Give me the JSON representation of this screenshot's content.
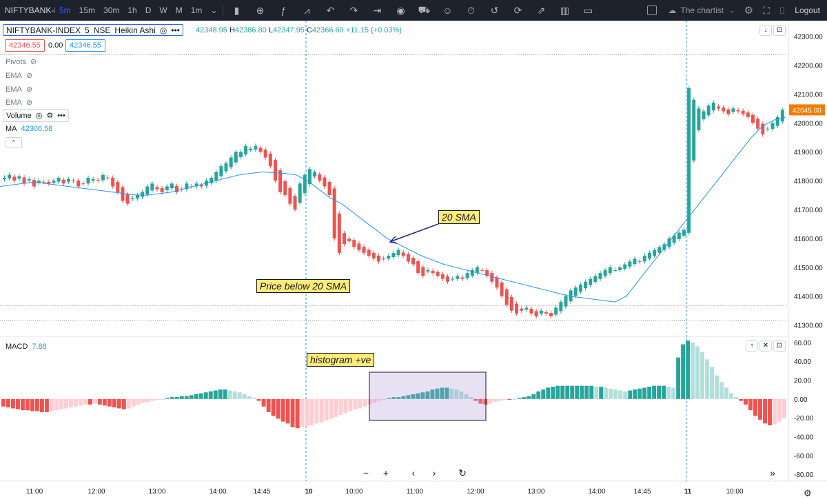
{
  "toolbar": {
    "symbol_short": "NIFTYBANK-I",
    "timeframes": [
      "5m",
      "15m",
      "30m",
      "1h",
      "D",
      "W",
      "M",
      "1m"
    ],
    "active_timeframe": "5m",
    "chartist": "The chartist",
    "logout": "Logout"
  },
  "legend": {
    "title_symbol": "NIFTYBANK-INDEX",
    "title_interval": "5",
    "title_exchange": "NSE",
    "title_style": "Heikin Ashi",
    "o_label": "",
    "o": "42348.95",
    "h_label": "H",
    "h": "42386.80",
    "l_label": "L",
    "l": "42347.95",
    "c_label": "C",
    "c": "42366.60",
    "change": "+11.15 (+0.03%)",
    "bid": "42346.55",
    "spread": "0.00",
    "ask": "42346.55",
    "pivots": "Pivots",
    "ema": "EMA",
    "volume": "Volume",
    "ma_label": "MA",
    "ma_value": "42306.58",
    "macd_label": "MACD",
    "macd_value": "7.88",
    "last_price": "42045.00"
  },
  "notes": {
    "sma": "20 SMA",
    "price_below": "Price below 20 SMA",
    "histogram": "histogram +ve"
  },
  "colors": {
    "up": "#26a69a",
    "down": "#ef5350",
    "up_light": "#b2dfdb",
    "down_light": "#ffcdd2",
    "sma": "#2196f3",
    "last_price_bg": "#f57c00",
    "toolbar_bg": "#1e222d"
  },
  "chart_data": [
    {
      "type": "candlestick",
      "title": "",
      "y_ticks": [
        "42300.00",
        "42200.00",
        "42100.00",
        "42000.00",
        "41900.00",
        "41800.00",
        "41700.00",
        "41600.00",
        "41500.00",
        "41400.00",
        "41300.00"
      ],
      "ylim": [
        41280,
        42330
      ],
      "x_ticks": [
        "11:00",
        "12:00",
        "13:00",
        "14:00",
        "14:45",
        "10",
        "10:00",
        "11:00",
        "12:00",
        "13:00",
        "14:00",
        "14:45",
        "11",
        "10:00"
      ],
      "closes": [
        41810,
        41820,
        41800,
        41815,
        41790,
        41805,
        41780,
        41800,
        41795,
        41790,
        41800,
        41810,
        41790,
        41805,
        41800,
        41780,
        41790,
        41810,
        41805,
        41800,
        41820,
        41810,
        41780,
        41760,
        41730,
        41720,
        41740,
        41750,
        41760,
        41780,
        41790,
        41770,
        41760,
        41780,
        41790,
        41760,
        41770,
        41790,
        41780,
        41790,
        41780,
        41800,
        41810,
        41830,
        41850,
        41860,
        41880,
        41900,
        41900,
        41920,
        41910,
        41920,
        41900,
        41880,
        41850,
        41800,
        41760,
        41750,
        41720,
        41700,
        41790,
        41820,
        41840,
        41830,
        41800,
        41780,
        41750,
        41600,
        41550,
        41580,
        41590,
        41570,
        41560,
        41550,
        41540,
        41530,
        41520,
        41530,
        41540,
        41550,
        41560,
        41540,
        41520,
        41510,
        41480,
        41470,
        41490,
        41480,
        41470,
        41460,
        41450,
        41460,
        41470,
        41460,
        41480,
        41490,
        41500,
        41490,
        41470,
        41450,
        41430,
        41400,
        41370,
        41350,
        41340,
        41350,
        41360,
        41340,
        41330,
        41350,
        41340,
        41330,
        41360,
        41380,
        41400,
        41420,
        41430,
        41440,
        41450,
        41460,
        41470,
        41480,
        41490,
        41500,
        41490,
        41500,
        41510,
        41520,
        41530,
        41520,
        41540,
        41550,
        41560,
        41570,
        41580,
        41600,
        41610,
        41620,
        41630,
        42120,
        42080,
        42050,
        42040,
        42060,
        42070,
        42050,
        42040,
        42030,
        42050,
        42040,
        42030,
        42020,
        42000,
        41980,
        41960,
        41980,
        42000,
        42020,
        42045
      ],
      "sma_20": [
        41780,
        41785,
        41790,
        41795,
        41790,
        41785,
        41780,
        41775,
        41770,
        41765,
        41760,
        41755,
        41750,
        41750,
        41755,
        41760,
        41770,
        41780,
        41790,
        41800,
        41810,
        41820,
        41825,
        41830,
        41828,
        41825,
        41820,
        41800,
        41770,
        41740,
        41720,
        41690,
        41660,
        41630,
        41600,
        41580,
        41560,
        41540,
        41525,
        41510,
        41500,
        41490,
        41480,
        41470,
        41460,
        41450,
        41440,
        41430,
        41420,
        41410,
        41400,
        41395,
        41390,
        41385,
        41380,
        41400,
        41450,
        41500,
        41550,
        41600,
        41650,
        41700,
        41750,
        41800,
        41850,
        41900,
        41950,
        41990,
        42010,
        42020
      ],
      "annotations": [
        "20 SMA",
        "Price below 20 SMA"
      ]
    },
    {
      "type": "bar",
      "title": "MACD",
      "y_ticks": [
        "60.00",
        "40.00",
        "20.00",
        "0.00",
        "-20.00",
        "-40.00",
        "-60.00",
        "-80.00"
      ],
      "ylim": [
        -85,
        65
      ],
      "values": [
        -8,
        -9,
        -10,
        -11,
        -12,
        -12,
        -13,
        -13,
        -14,
        -14,
        -13,
        -12,
        -11,
        -10,
        -9,
        -8,
        -7,
        -6,
        -6,
        -5,
        -6,
        -7,
        -8,
        -9,
        -10,
        -11,
        -10,
        -8,
        -6,
        -4,
        -3,
        -2,
        -1,
        0,
        1,
        2,
        2,
        3,
        3,
        4,
        5,
        6,
        7,
        8,
        9,
        10,
        10,
        9,
        8,
        7,
        5,
        3,
        1,
        -2,
        -8,
        -14,
        -18,
        -21,
        -24,
        -26,
        -30,
        -31,
        -30,
        -29,
        -28,
        -26,
        -25,
        -23,
        -21,
        -19,
        -17,
        -15,
        -13,
        -11,
        -10,
        -8,
        -6,
        -4,
        -2,
        0,
        1,
        2,
        2,
        3,
        4,
        5,
        6,
        7,
        8,
        10,
        11,
        12,
        12,
        11,
        10,
        8,
        5,
        2,
        -2,
        -5,
        -6,
        -5,
        -3,
        -2,
        -1,
        -1,
        0,
        1,
        2,
        3,
        5,
        8,
        10,
        12,
        13,
        14,
        14,
        14,
        14,
        14,
        14,
        14,
        14,
        13,
        13,
        12,
        11,
        10,
        9,
        8,
        9,
        10,
        11,
        12,
        13,
        14,
        14,
        14,
        13,
        12,
        44,
        58,
        62,
        60,
        56,
        50,
        42,
        34,
        25,
        18,
        12,
        6,
        2,
        -2,
        -6,
        -12,
        -18,
        -22,
        -26,
        -28,
        -27,
        -24,
        -20
      ],
      "annotations": [
        "histogram +ve"
      ]
    }
  ]
}
